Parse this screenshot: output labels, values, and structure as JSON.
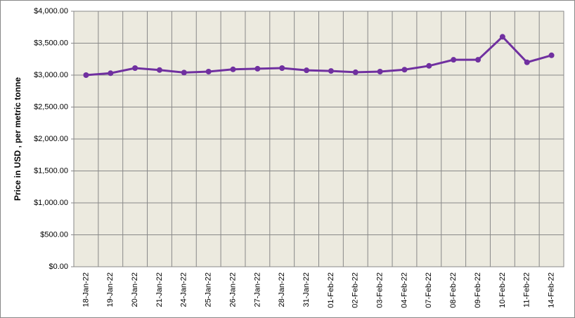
{
  "chart_data": {
    "type": "line",
    "y_label": "Price in USD , per metric tonne",
    "categories": [
      "18-Jan-22",
      "19-Jan-22",
      "20-Jan-22",
      "21-Jan-22",
      "24-Jan-22",
      "25-Jan-22",
      "26-Jan-22",
      "27-Jan-22",
      "28-Jan-22",
      "31-Jan-22",
      "01-Feb-22",
      "02-Feb-22",
      "03-Feb-22",
      "04-Feb-22",
      "07-Feb-22",
      "08-Feb-22",
      "09-Feb-22",
      "10-Feb-22",
      "11-Feb-22",
      "14-Feb-22"
    ],
    "series": [
      {
        "color": "#7030a0",
        "values": [
          3000,
          3030,
          3110,
          3080,
          3040,
          3055,
          3090,
          3100,
          3110,
          3075,
          3065,
          3045,
          3055,
          3085,
          3145,
          3240,
          3240,
          3600,
          3200,
          3310
        ]
      }
    ],
    "ylim": [
      0,
      4000
    ],
    "yticks": [
      {
        "value": 0,
        "label": "$0.00"
      },
      {
        "value": 500,
        "label": "$500.00"
      },
      {
        "value": 1000,
        "label": "$1,000.00"
      },
      {
        "value": 1500,
        "label": "$1,500.00"
      },
      {
        "value": 2000,
        "label": "$2,000.00"
      },
      {
        "value": 2500,
        "label": "$2,500.00"
      },
      {
        "value": 3000,
        "label": "$3,000.00"
      },
      {
        "value": 3500,
        "label": "$3,500.00"
      },
      {
        "value": 4000,
        "label": "$4,000.00"
      }
    ],
    "grid": true
  }
}
